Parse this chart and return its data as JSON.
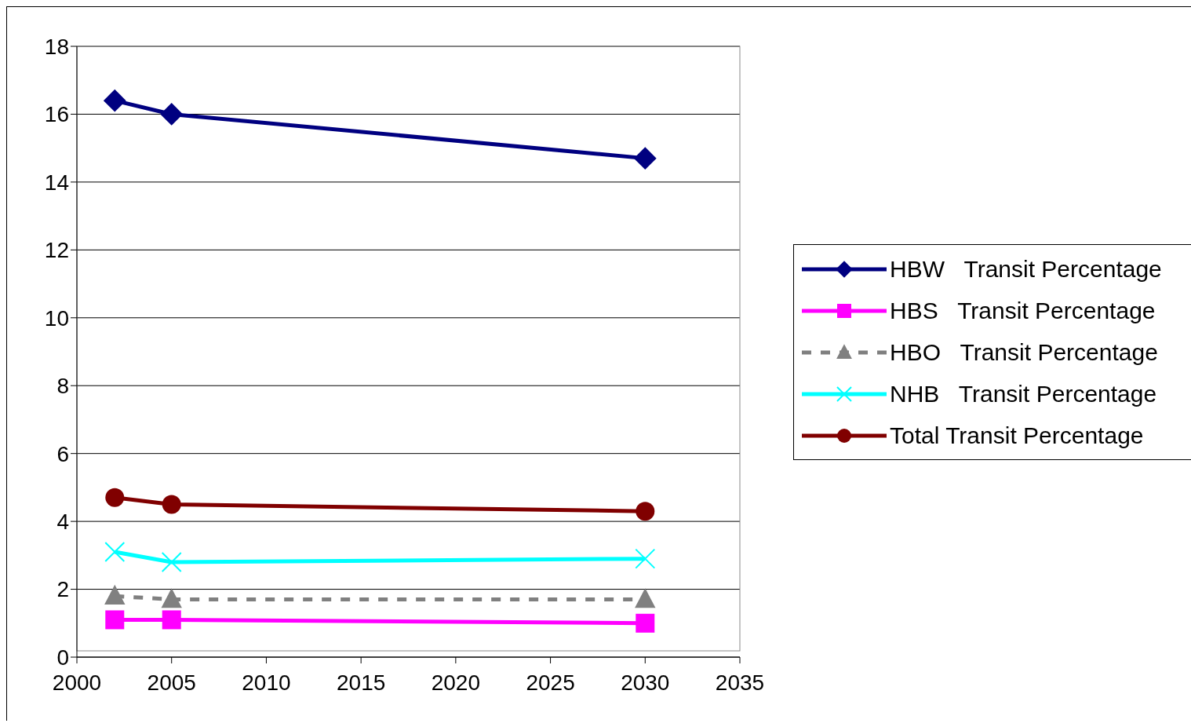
{
  "chart_data": {
    "type": "line",
    "x": [
      2002,
      2005,
      2030
    ],
    "series": [
      {
        "name": "HBW   Transit Percentage",
        "color": "#000080",
        "marker": "diamond",
        "line_style": "solid",
        "values": [
          16.4,
          16.0,
          14.7
        ]
      },
      {
        "name": "HBS   Transit Percentage",
        "color": "#ff00ff",
        "marker": "square",
        "line_style": "solid",
        "values": [
          1.1,
          1.1,
          1.0
        ]
      },
      {
        "name": "HBO   Transit Percentage",
        "color": "#808080",
        "marker": "triangle",
        "line_style": "dashed",
        "values": [
          1.8,
          1.7,
          1.7
        ]
      },
      {
        "name": "NHB   Transit Percentage",
        "color": "#00ffff",
        "marker": "cross",
        "line_style": "solid",
        "values": [
          3.1,
          2.8,
          2.9
        ]
      },
      {
        "name": "Total Transit Percentage",
        "color": "#800000",
        "marker": "circle",
        "line_style": "solid",
        "values": [
          4.7,
          4.5,
          4.3
        ]
      }
    ],
    "xlim": [
      2000,
      2035
    ],
    "xticks": [
      2000,
      2005,
      2010,
      2015,
      2020,
      2025,
      2030,
      2035
    ],
    "ylim": [
      0,
      18
    ],
    "yticks": [
      0,
      2,
      4,
      6,
      8,
      10,
      12,
      14,
      16,
      18
    ],
    "grid": "y",
    "legend": "right"
  }
}
